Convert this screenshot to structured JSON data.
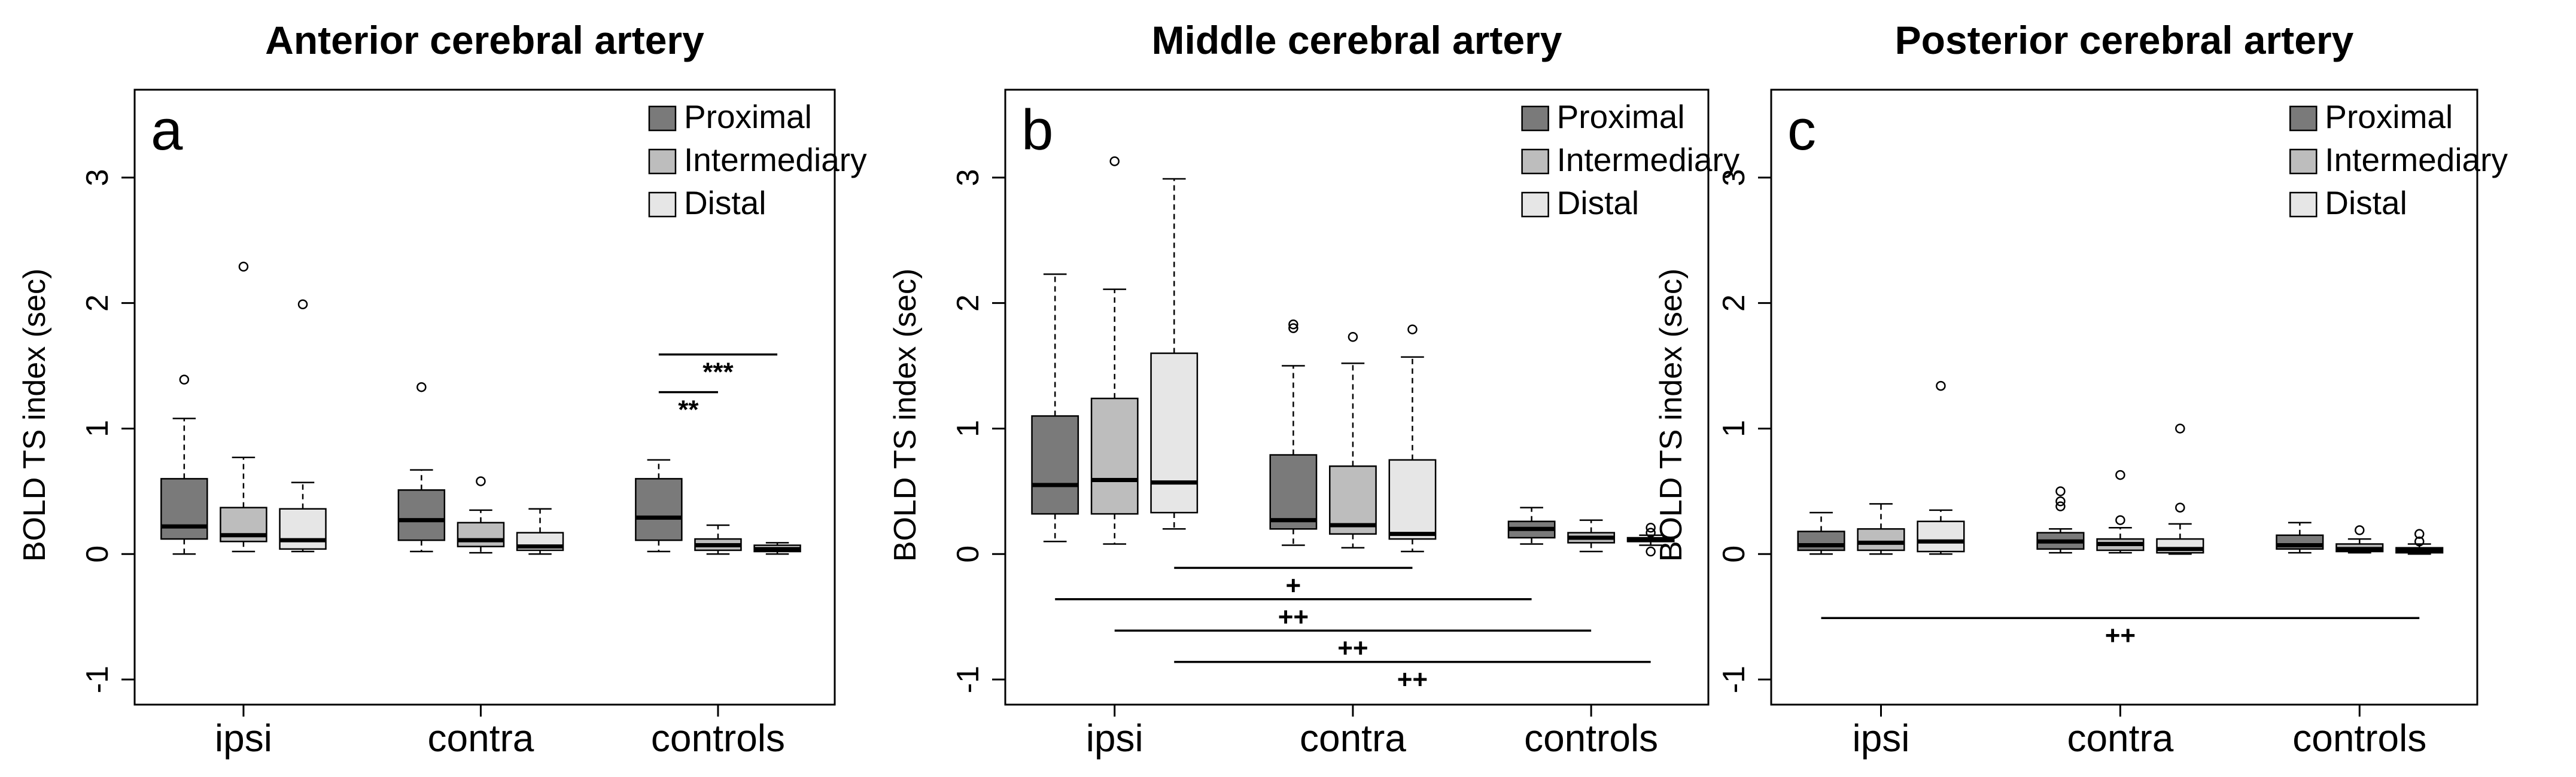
{
  "colors": {
    "Proximal": "#7a7a7a",
    "Intermediary": "#bdbdbd",
    "Distal": "#e6e6e6"
  },
  "legend_labels": [
    "Proximal",
    "Intermediary",
    "Distal"
  ],
  "chart_data": [
    {
      "type": "boxplot",
      "title": "Anterior cerebral artery",
      "panel_label": "a",
      "ylabel": "BOLD TS index (sec)",
      "ylim": [
        -1.2,
        3.7
      ],
      "yticks": [
        -1,
        0,
        1,
        2,
        3
      ],
      "categories": [
        "ipsi",
        "contra",
        "controls"
      ],
      "series": [
        "Proximal",
        "Intermediary",
        "Distal"
      ],
      "groups": [
        {
          "category": "ipsi",
          "boxes": [
            {
              "series": "Proximal",
              "whisker_low": 0.0,
              "q1": 0.12,
              "median": 0.22,
              "q3": 0.6,
              "whisker_high": 1.08,
              "outliers": [
                1.39
              ]
            },
            {
              "series": "Intermediary",
              "whisker_low": 0.02,
              "q1": 0.1,
              "median": 0.15,
              "q3": 0.37,
              "whisker_high": 0.77,
              "outliers": [
                2.29
              ]
            },
            {
              "series": "Distal",
              "whisker_low": 0.02,
              "q1": 0.04,
              "median": 0.11,
              "q3": 0.36,
              "whisker_high": 0.57,
              "outliers": [
                1.99
              ]
            }
          ]
        },
        {
          "category": "contra",
          "boxes": [
            {
              "series": "Proximal",
              "whisker_low": 0.02,
              "q1": 0.11,
              "median": 0.27,
              "q3": 0.51,
              "whisker_high": 0.67,
              "outliers": [
                1.33
              ]
            },
            {
              "series": "Intermediary",
              "whisker_low": 0.01,
              "q1": 0.06,
              "median": 0.11,
              "q3": 0.25,
              "whisker_high": 0.35,
              "outliers": [
                0.58
              ]
            },
            {
              "series": "Distal",
              "whisker_low": 0.0,
              "q1": 0.03,
              "median": 0.06,
              "q3": 0.17,
              "whisker_high": 0.36,
              "outliers": []
            }
          ]
        },
        {
          "category": "controls",
          "boxes": [
            {
              "series": "Proximal",
              "whisker_low": 0.02,
              "q1": 0.11,
              "median": 0.29,
              "q3": 0.6,
              "whisker_high": 0.75,
              "outliers": []
            },
            {
              "series": "Intermediary",
              "whisker_low": 0.0,
              "q1": 0.03,
              "median": 0.07,
              "q3": 0.12,
              "whisker_high": 0.23,
              "outliers": []
            },
            {
              "series": "Distal",
              "whisker_low": 0.0,
              "q1": 0.02,
              "median": 0.04,
              "q3": 0.07,
              "whisker_high": 0.09,
              "outliers": []
            }
          ]
        }
      ],
      "significance": [
        {
          "label": "***",
          "y": 1.59,
          "from": "controls/Proximal",
          "to": "controls/Distal"
        },
        {
          "label": "**",
          "y": 1.29,
          "from": "controls/Proximal",
          "to": "controls/Intermediary"
        }
      ]
    },
    {
      "type": "boxplot",
      "title": "Middle cerebral artery",
      "panel_label": "b",
      "ylabel": "BOLD TS index (sec)",
      "ylim": [
        -1.2,
        3.7
      ],
      "yticks": [
        -1,
        0,
        1,
        2,
        3
      ],
      "categories": [
        "ipsi",
        "contra",
        "controls"
      ],
      "series": [
        "Proximal",
        "Intermediary",
        "Distal"
      ],
      "groups": [
        {
          "category": "ipsi",
          "boxes": [
            {
              "series": "Proximal",
              "whisker_low": 0.1,
              "q1": 0.32,
              "median": 0.55,
              "q3": 1.1,
              "whisker_high": 2.23,
              "outliers": []
            },
            {
              "series": "Intermediary",
              "whisker_low": 0.08,
              "q1": 0.32,
              "median": 0.59,
              "q3": 1.24,
              "whisker_high": 2.11,
              "outliers": [
                3.13
              ]
            },
            {
              "series": "Distal",
              "whisker_low": 0.2,
              "q1": 0.33,
              "median": 0.57,
              "q3": 1.6,
              "whisker_high": 2.99,
              "outliers": []
            }
          ]
        },
        {
          "category": "contra",
          "boxes": [
            {
              "series": "Proximal",
              "whisker_low": 0.07,
              "q1": 0.2,
              "median": 0.27,
              "q3": 0.79,
              "whisker_high": 1.5,
              "outliers": [
                1.8,
                1.83
              ]
            },
            {
              "series": "Intermediary",
              "whisker_low": 0.05,
              "q1": 0.16,
              "median": 0.23,
              "q3": 0.7,
              "whisker_high": 1.52,
              "outliers": [
                1.73
              ]
            },
            {
              "series": "Distal",
              "whisker_low": 0.02,
              "q1": 0.12,
              "median": 0.16,
              "q3": 0.75,
              "whisker_high": 1.57,
              "outliers": [
                1.79
              ]
            }
          ]
        },
        {
          "category": "controls",
          "boxes": [
            {
              "series": "Proximal",
              "whisker_low": 0.08,
              "q1": 0.13,
              "median": 0.2,
              "q3": 0.26,
              "whisker_high": 0.37,
              "outliers": []
            },
            {
              "series": "Intermediary",
              "whisker_low": 0.02,
              "q1": 0.09,
              "median": 0.13,
              "q3": 0.17,
              "whisker_high": 0.27,
              "outliers": []
            },
            {
              "series": "Distal",
              "whisker_low": 0.07,
              "q1": 0.1,
              "median": 0.11,
              "q3": 0.13,
              "whisker_high": 0.15,
              "outliers": [
                0.02,
                0.17,
                0.21
              ]
            }
          ]
        }
      ],
      "significance": [
        {
          "label": "+",
          "y": -0.11,
          "from": "ipsi/Distal",
          "to": "contra/Distal"
        },
        {
          "label": "++",
          "y": -0.36,
          "from": "ipsi/Proximal",
          "to": "controls/Proximal"
        },
        {
          "label": "++",
          "y": -0.61,
          "from": "ipsi/Intermediary",
          "to": "controls/Intermediary"
        },
        {
          "label": "++",
          "y": -0.86,
          "from": "ipsi/Distal",
          "to": "controls/Distal"
        }
      ]
    },
    {
      "type": "boxplot",
      "title": "Posterior cerebral artery",
      "panel_label": "c",
      "ylabel": "BOLD TS index (sec)",
      "ylim": [
        -1.2,
        3.7
      ],
      "yticks": [
        -1,
        0,
        1,
        2,
        3
      ],
      "categories": [
        "ipsi",
        "contra",
        "controls"
      ],
      "series": [
        "Proximal",
        "Intermediary",
        "Distal"
      ],
      "groups": [
        {
          "category": "ipsi",
          "boxes": [
            {
              "series": "Proximal",
              "whisker_low": 0.0,
              "q1": 0.03,
              "median": 0.07,
              "q3": 0.18,
              "whisker_high": 0.33,
              "outliers": []
            },
            {
              "series": "Intermediary",
              "whisker_low": 0.0,
              "q1": 0.03,
              "median": 0.09,
              "q3": 0.2,
              "whisker_high": 0.4,
              "outliers": []
            },
            {
              "series": "Distal",
              "whisker_low": 0.0,
              "q1": 0.02,
              "median": 0.1,
              "q3": 0.26,
              "whisker_high": 0.35,
              "outliers": [
                1.34
              ]
            }
          ]
        },
        {
          "category": "contra",
          "boxes": [
            {
              "series": "Proximal",
              "whisker_low": 0.01,
              "q1": 0.04,
              "median": 0.1,
              "q3": 0.17,
              "whisker_high": 0.2,
              "outliers": [
                0.38,
                0.42,
                0.5
              ]
            },
            {
              "series": "Intermediary",
              "whisker_low": 0.01,
              "q1": 0.03,
              "median": 0.08,
              "q3": 0.12,
              "whisker_high": 0.21,
              "outliers": [
                0.27,
                0.63
              ]
            },
            {
              "series": "Distal",
              "whisker_low": 0.0,
              "q1": 0.01,
              "median": 0.04,
              "q3": 0.12,
              "whisker_high": 0.24,
              "outliers": [
                0.37,
                1.0
              ]
            }
          ]
        },
        {
          "category": "controls",
          "boxes": [
            {
              "series": "Proximal",
              "whisker_low": 0.01,
              "q1": 0.04,
              "median": 0.07,
              "q3": 0.15,
              "whisker_high": 0.25,
              "outliers": []
            },
            {
              "series": "Intermediary",
              "whisker_low": 0.01,
              "q1": 0.02,
              "median": 0.04,
              "q3": 0.08,
              "whisker_high": 0.12,
              "outliers": [
                0.19
              ]
            },
            {
              "series": "Distal",
              "whisker_low": 0.0,
              "q1": 0.01,
              "median": 0.03,
              "q3": 0.05,
              "whisker_high": 0.08,
              "outliers": [
                0.1,
                0.16
              ]
            }
          ]
        }
      ],
      "significance": [
        {
          "label": "++",
          "y": -0.51,
          "from": "ipsi/Proximal",
          "to": "controls/Distal"
        }
      ]
    }
  ]
}
